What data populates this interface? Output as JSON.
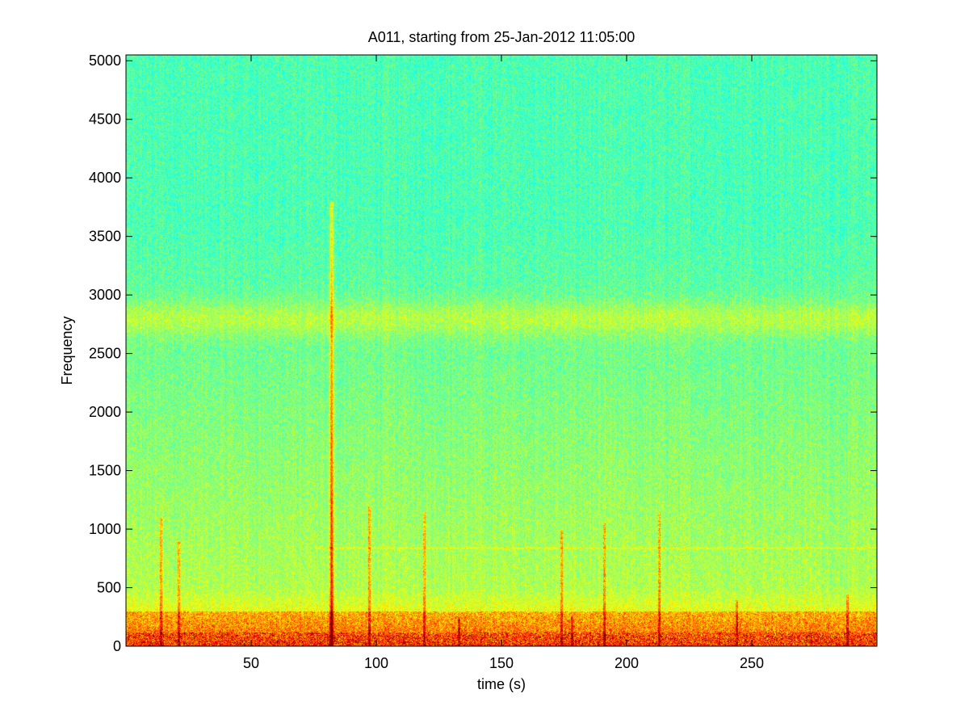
{
  "chart_data": {
    "type": "heatmap",
    "title": "A011, starting from 25-Jan-2012 11:05:00",
    "xlabel": "time (s)",
    "ylabel": "Frequency",
    "xlim": [
      0,
      300
    ],
    "ylim": [
      0,
      5050
    ],
    "x_ticks": [
      50,
      100,
      150,
      200,
      250
    ],
    "y_ticks": [
      0,
      500,
      1000,
      1500,
      2000,
      2500,
      3000,
      3500,
      4000,
      4500,
      5000
    ],
    "grid": false,
    "colormap": "jet",
    "spectrogram_features": {
      "broadband_event": {
        "time": 82,
        "freq_min": 0,
        "freq_max": 3800,
        "level": "high"
      },
      "persistent_band": {
        "freq_center": 2800,
        "freq_halfwidth": 150,
        "level": "elevated"
      },
      "harmonic_line": {
        "freq": 840,
        "time_start": 75,
        "time_end": 300
      },
      "low_frequency_energy": {
        "freq_max": 500,
        "level": "high"
      },
      "transients": [
        {
          "time": 14,
          "freq_max": 1100
        },
        {
          "time": 21,
          "freq_max": 900
        },
        {
          "time": 97,
          "freq_max": 1200
        },
        {
          "time": 119,
          "freq_max": 1150
        },
        {
          "time": 133,
          "freq_max": 250
        },
        {
          "time": 174,
          "freq_max": 1000
        },
        {
          "time": 178,
          "freq_max": 250
        },
        {
          "time": 191,
          "freq_max": 1050
        },
        {
          "time": 213,
          "freq_max": 1150
        },
        {
          "time": 244,
          "freq_max": 400
        },
        {
          "time": 288,
          "freq_max": 450
        }
      ]
    }
  }
}
